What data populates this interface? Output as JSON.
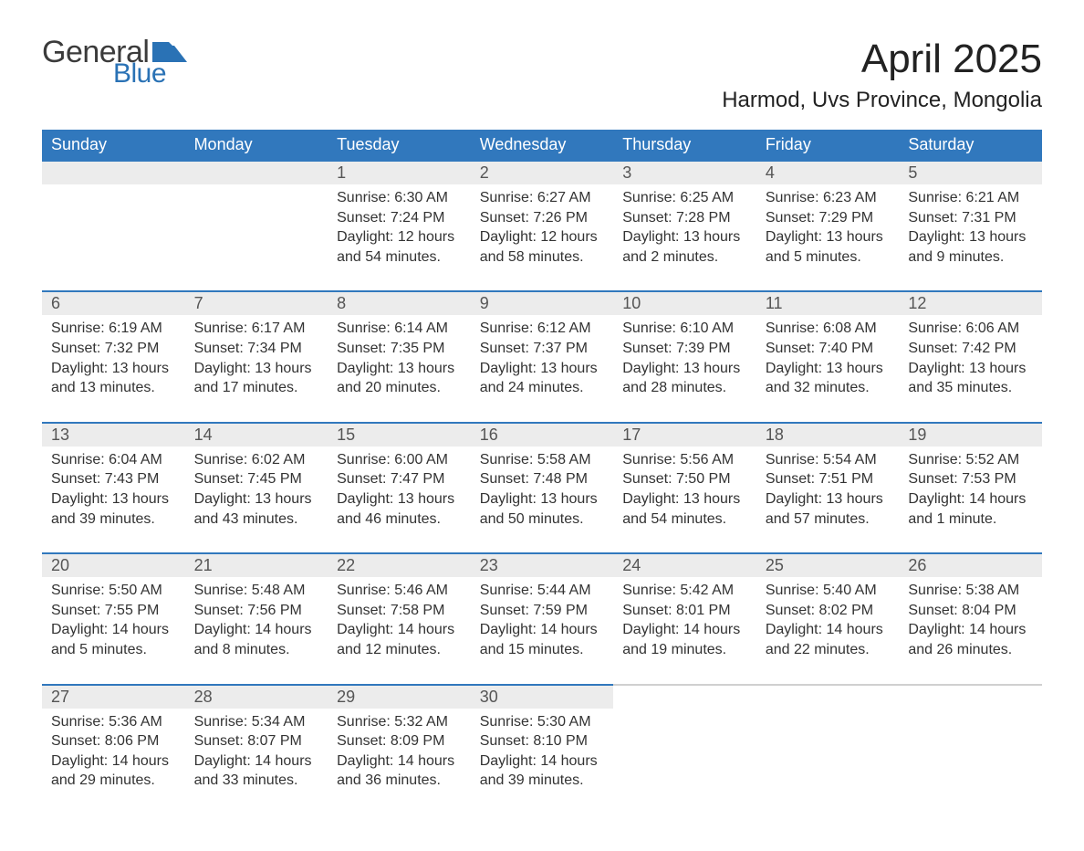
{
  "logo": {
    "word1": "General",
    "word2": "Blue",
    "flag_color": "#2a72b5"
  },
  "title": "April 2025",
  "location": "Harmod, Uvs Province, Mongolia",
  "colors": {
    "header_bg": "#3178bd",
    "header_text": "#ffffff",
    "daynum_bg": "#ececec",
    "rule": "#3178bd",
    "body_text": "#333333"
  },
  "day_headers": [
    "Sunday",
    "Monday",
    "Tuesday",
    "Wednesday",
    "Thursday",
    "Friday",
    "Saturday"
  ],
  "weeks": [
    [
      {
        "blank": true
      },
      {
        "blank": true
      },
      {
        "num": "1",
        "sunrise": "6:30 AM",
        "sunset": "7:24 PM",
        "daylight": "12 hours and 54 minutes."
      },
      {
        "num": "2",
        "sunrise": "6:27 AM",
        "sunset": "7:26 PM",
        "daylight": "12 hours and 58 minutes."
      },
      {
        "num": "3",
        "sunrise": "6:25 AM",
        "sunset": "7:28 PM",
        "daylight": "13 hours and 2 minutes."
      },
      {
        "num": "4",
        "sunrise": "6:23 AM",
        "sunset": "7:29 PM",
        "daylight": "13 hours and 5 minutes."
      },
      {
        "num": "5",
        "sunrise": "6:21 AM",
        "sunset": "7:31 PM",
        "daylight": "13 hours and 9 minutes."
      }
    ],
    [
      {
        "num": "6",
        "sunrise": "6:19 AM",
        "sunset": "7:32 PM",
        "daylight": "13 hours and 13 minutes."
      },
      {
        "num": "7",
        "sunrise": "6:17 AM",
        "sunset": "7:34 PM",
        "daylight": "13 hours and 17 minutes."
      },
      {
        "num": "8",
        "sunrise": "6:14 AM",
        "sunset": "7:35 PM",
        "daylight": "13 hours and 20 minutes."
      },
      {
        "num": "9",
        "sunrise": "6:12 AM",
        "sunset": "7:37 PM",
        "daylight": "13 hours and 24 minutes."
      },
      {
        "num": "10",
        "sunrise": "6:10 AM",
        "sunset": "7:39 PM",
        "daylight": "13 hours and 28 minutes."
      },
      {
        "num": "11",
        "sunrise": "6:08 AM",
        "sunset": "7:40 PM",
        "daylight": "13 hours and 32 minutes."
      },
      {
        "num": "12",
        "sunrise": "6:06 AM",
        "sunset": "7:42 PM",
        "daylight": "13 hours and 35 minutes."
      }
    ],
    [
      {
        "num": "13",
        "sunrise": "6:04 AM",
        "sunset": "7:43 PM",
        "daylight": "13 hours and 39 minutes."
      },
      {
        "num": "14",
        "sunrise": "6:02 AM",
        "sunset": "7:45 PM",
        "daylight": "13 hours and 43 minutes."
      },
      {
        "num": "15",
        "sunrise": "6:00 AM",
        "sunset": "7:47 PM",
        "daylight": "13 hours and 46 minutes."
      },
      {
        "num": "16",
        "sunrise": "5:58 AM",
        "sunset": "7:48 PM",
        "daylight": "13 hours and 50 minutes."
      },
      {
        "num": "17",
        "sunrise": "5:56 AM",
        "sunset": "7:50 PM",
        "daylight": "13 hours and 54 minutes."
      },
      {
        "num": "18",
        "sunrise": "5:54 AM",
        "sunset": "7:51 PM",
        "daylight": "13 hours and 57 minutes."
      },
      {
        "num": "19",
        "sunrise": "5:52 AM",
        "sunset": "7:53 PM",
        "daylight": "14 hours and 1 minute."
      }
    ],
    [
      {
        "num": "20",
        "sunrise": "5:50 AM",
        "sunset": "7:55 PM",
        "daylight": "14 hours and 5 minutes."
      },
      {
        "num": "21",
        "sunrise": "5:48 AM",
        "sunset": "7:56 PM",
        "daylight": "14 hours and 8 minutes."
      },
      {
        "num": "22",
        "sunrise": "5:46 AM",
        "sunset": "7:58 PM",
        "daylight": "14 hours and 12 minutes."
      },
      {
        "num": "23",
        "sunrise": "5:44 AM",
        "sunset": "7:59 PM",
        "daylight": "14 hours and 15 minutes."
      },
      {
        "num": "24",
        "sunrise": "5:42 AM",
        "sunset": "8:01 PM",
        "daylight": "14 hours and 19 minutes."
      },
      {
        "num": "25",
        "sunrise": "5:40 AM",
        "sunset": "8:02 PM",
        "daylight": "14 hours and 22 minutes."
      },
      {
        "num": "26",
        "sunrise": "5:38 AM",
        "sunset": "8:04 PM",
        "daylight": "14 hours and 26 minutes."
      }
    ],
    [
      {
        "num": "27",
        "sunrise": "5:36 AM",
        "sunset": "8:06 PM",
        "daylight": "14 hours and 29 minutes."
      },
      {
        "num": "28",
        "sunrise": "5:34 AM",
        "sunset": "8:07 PM",
        "daylight": "14 hours and 33 minutes."
      },
      {
        "num": "29",
        "sunrise": "5:32 AM",
        "sunset": "8:09 PM",
        "daylight": "14 hours and 36 minutes."
      },
      {
        "num": "30",
        "sunrise": "5:30 AM",
        "sunset": "8:10 PM",
        "daylight": "14 hours and 39 minutes."
      },
      {
        "blank": true
      },
      {
        "blank": true
      },
      {
        "blank": true
      }
    ]
  ],
  "labels": {
    "sunrise": "Sunrise: ",
    "sunset": "Sunset: ",
    "daylight": "Daylight: "
  }
}
